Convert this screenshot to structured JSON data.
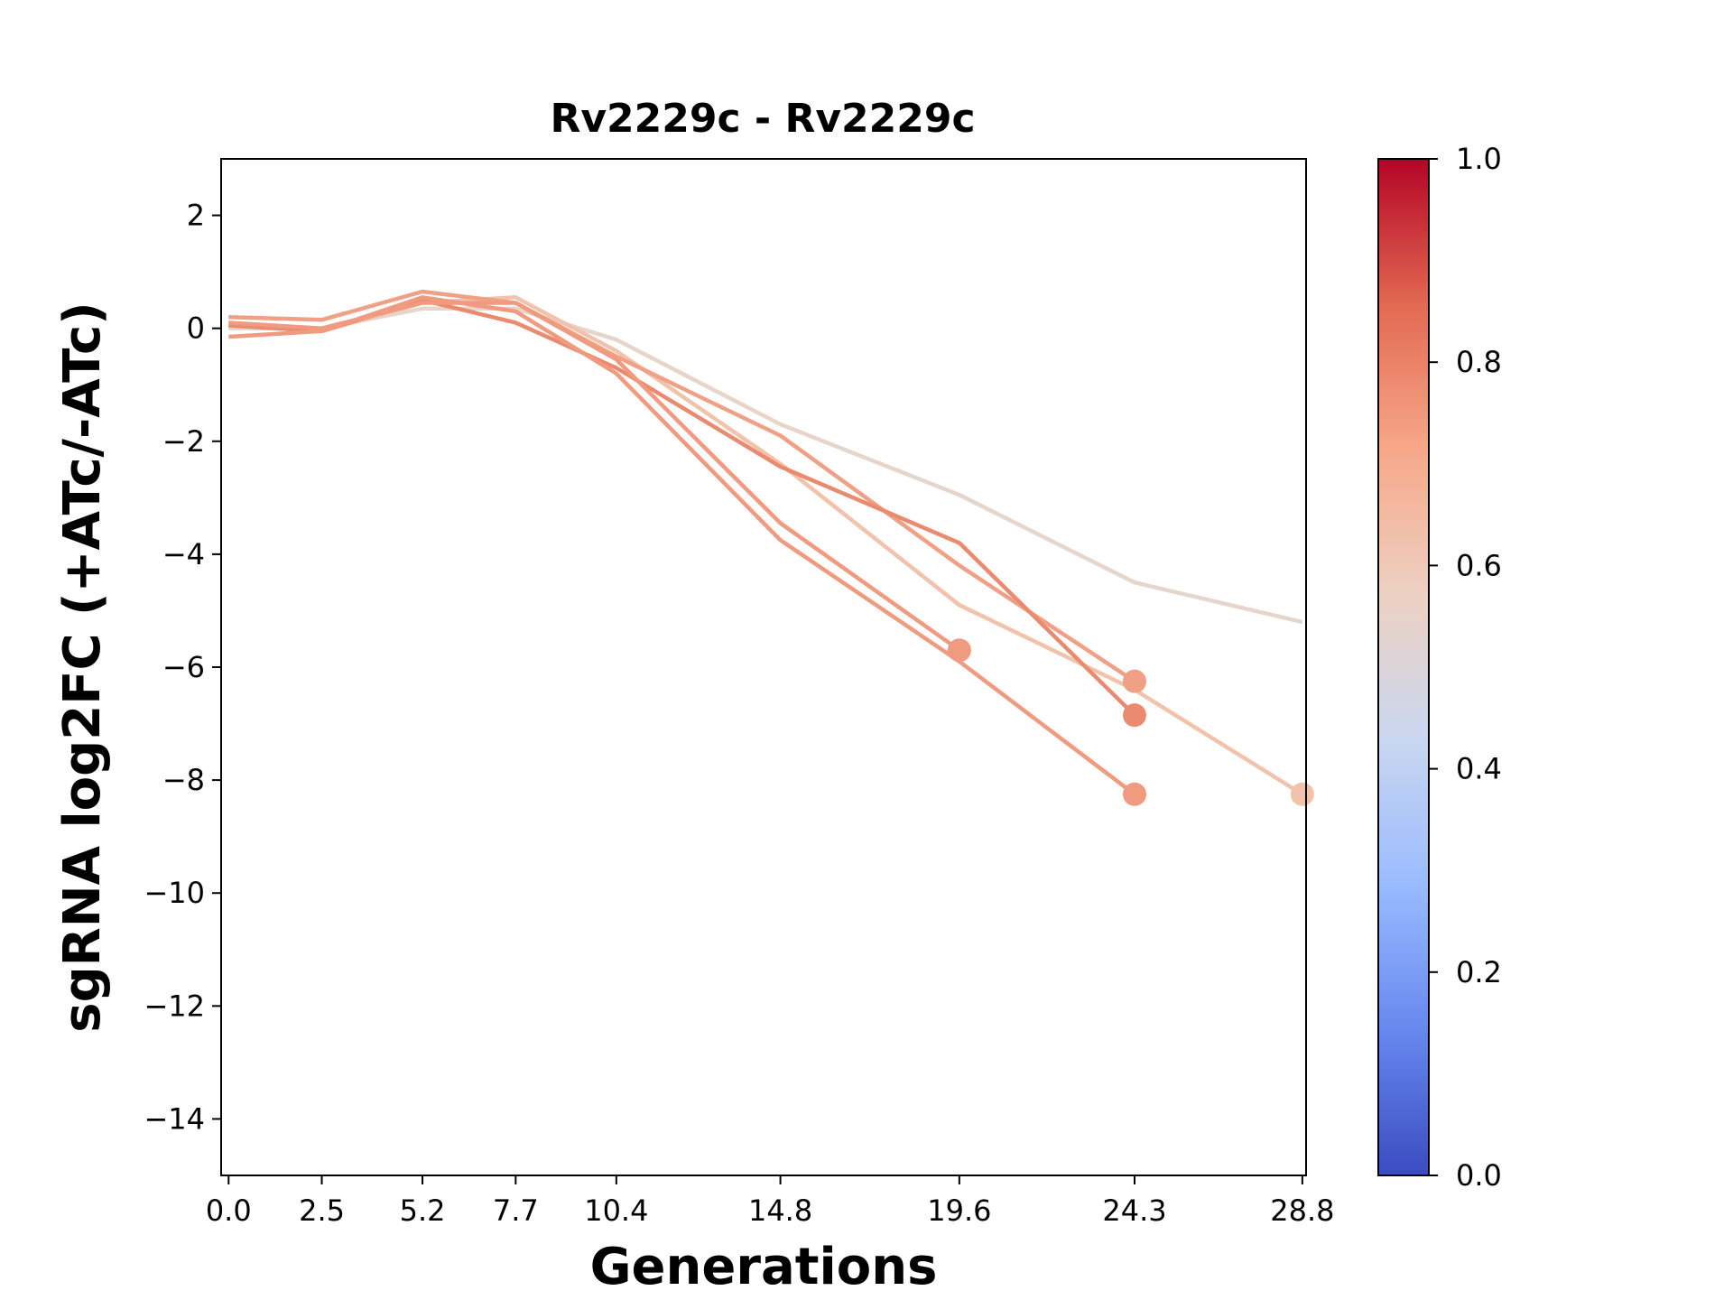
{
  "chart_data": {
    "type": "line",
    "title": "Rv2229c - Rv2229c",
    "xlabel": "Generations",
    "ylabel": "sgRNA log2FC (+ATc/-ATc)",
    "x_ticks": [
      "0.0",
      "2.5",
      "5.2",
      "7.7",
      "10.4",
      "14.8",
      "19.6",
      "24.3",
      "28.8"
    ],
    "xlim": [
      -0.2,
      28.9
    ],
    "ylim": [
      -15,
      3
    ],
    "y_ticks": [
      2,
      0,
      -2,
      -4,
      -6,
      -8,
      -10,
      -12,
      -14
    ],
    "y_tick_labels": [
      "2",
      "0",
      "−2",
      "−4",
      "−6",
      "−8",
      "−10",
      "−12",
      "−14"
    ],
    "colorbar": {
      "range": [
        0,
        1
      ],
      "ticks": [
        "0.0",
        "0.2",
        "0.4",
        "0.6",
        "0.8",
        "1.0"
      ],
      "colormap": "coolwarm",
      "colors": [
        "#3b4cc0",
        "#6788ee",
        "#9abbff",
        "#c9d7f0",
        "#edd1c2",
        "#f7a889",
        "#e26952",
        "#b40426"
      ]
    },
    "series": [
      {
        "color": "#e6d5cb",
        "x": [
          0.0,
          2.5,
          5.2,
          7.7,
          10.4,
          14.8,
          19.6,
          24.3,
          28.8
        ],
        "y": [
          0.0,
          0.0,
          0.35,
          0.35,
          -0.2,
          -1.7,
          -2.95,
          -4.5,
          -5.2
        ],
        "end_marker": false
      },
      {
        "color": "#f2c3ab",
        "x": [
          0.0,
          2.5,
          5.2,
          7.7,
          10.4,
          14.8,
          19.6,
          24.3,
          28.8
        ],
        "y": [
          0.05,
          -0.05,
          0.45,
          0.55,
          -0.4,
          -2.4,
          -4.9,
          -6.4,
          -8.25
        ],
        "end_marker": true
      },
      {
        "color": "#f0a085",
        "x": [
          0.0,
          2.5,
          5.2,
          7.7,
          10.4,
          14.8,
          19.6,
          24.3
        ],
        "y": [
          0.2,
          0.15,
          0.65,
          0.45,
          -0.5,
          -1.9,
          -4.2,
          -6.25
        ],
        "end_marker": true
      },
      {
        "color": "#ea8a6e",
        "x": [
          0.0,
          2.5,
          5.2,
          7.7,
          10.4,
          14.8,
          19.6,
          24.3
        ],
        "y": [
          0.05,
          -0.05,
          0.5,
          0.1,
          -0.7,
          -2.45,
          -3.8,
          -6.85
        ],
        "end_marker": true
      },
      {
        "color": "#f09a7f",
        "x": [
          0.0,
          2.5,
          5.2,
          7.7,
          10.4,
          14.8,
          19.6,
          24.3
        ],
        "y": [
          -0.15,
          -0.05,
          0.55,
          0.3,
          -0.8,
          -3.75,
          -5.9,
          -8.25
        ],
        "end_marker": true
      },
      {
        "color": "#f09a7f",
        "x": [
          0.0,
          2.5,
          5.2,
          7.7,
          10.4,
          14.8,
          19.6
        ],
        "y": [
          0.1,
          0.0,
          0.45,
          0.45,
          -0.55,
          -3.45,
          -5.7
        ],
        "end_marker": true
      }
    ]
  }
}
